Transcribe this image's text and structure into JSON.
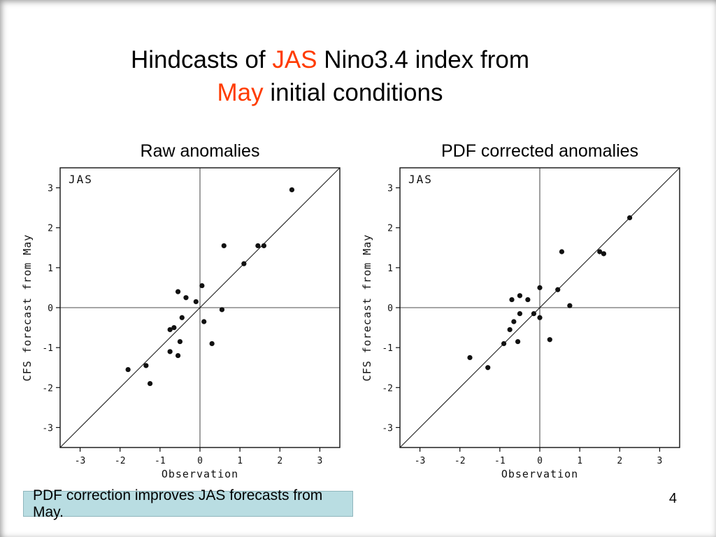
{
  "colors": {
    "accent": "#ff3b00",
    "note_background": "#b9dde2",
    "note_border": "#8fb6bd",
    "ink": "#111111"
  },
  "slide": {
    "page_number": "4",
    "note": "PDF correction improves JAS forecasts from May.",
    "title": {
      "line1": [
        {
          "text": "Hindcasts of ",
          "accent": false
        },
        {
          "text": "JAS",
          "accent": true
        },
        {
          "text": " Nino3.4 index from",
          "accent": false
        }
      ],
      "line2": [
        {
          "text": "May",
          "accent": true
        },
        {
          "text": " initial conditions",
          "accent": false
        }
      ]
    }
  },
  "chart_data": [
    {
      "type": "scatter",
      "title": "Raw anomalies",
      "inner_label": "JAS",
      "xlabel": "Observation",
      "ylabel": "CFS forecast from May",
      "xlim": [
        -3.5,
        3.5
      ],
      "ylim": [
        -3.5,
        3.5
      ],
      "xticks": [
        -3,
        -2,
        -1,
        0,
        1,
        2,
        3
      ],
      "yticks": [
        -3,
        -2,
        -1,
        0,
        1,
        2,
        3
      ],
      "grid": false,
      "reference_lines": [
        "diagonal y=x",
        "vertical x=0",
        "horizontal y=0"
      ],
      "points": [
        [
          -1.8,
          -1.55
        ],
        [
          -1.35,
          -1.45
        ],
        [
          -1.25,
          -1.9
        ],
        [
          -0.75,
          -1.1
        ],
        [
          -0.55,
          -1.2
        ],
        [
          -0.5,
          -0.85
        ],
        [
          -0.75,
          -0.55
        ],
        [
          -0.65,
          -0.5
        ],
        [
          -0.45,
          -0.25
        ],
        [
          -0.55,
          0.4
        ],
        [
          -0.35,
          0.25
        ],
        [
          -0.1,
          0.15
        ],
        [
          0.05,
          0.55
        ],
        [
          0.1,
          -0.35
        ],
        [
          0.3,
          -0.9
        ],
        [
          0.55,
          -0.05
        ],
        [
          0.6,
          1.55
        ],
        [
          1.1,
          1.1
        ],
        [
          1.45,
          1.55
        ],
        [
          1.6,
          1.55
        ],
        [
          2.3,
          2.95
        ]
      ]
    },
    {
      "type": "scatter",
      "title": "PDF corrected anomalies",
      "inner_label": "JAS",
      "xlabel": "Observation",
      "ylabel": "CFS forecast from May",
      "xlim": [
        -3.5,
        3.5
      ],
      "ylim": [
        -3.5,
        3.5
      ],
      "xticks": [
        -3,
        -2,
        -1,
        0,
        1,
        2,
        3
      ],
      "yticks": [
        -3,
        -2,
        -1,
        0,
        1,
        2,
        3
      ],
      "grid": false,
      "reference_lines": [
        "diagonal y=x",
        "vertical x=0",
        "horizontal y=0"
      ],
      "points": [
        [
          -1.75,
          -1.25
        ],
        [
          -1.3,
          -1.5
        ],
        [
          -0.9,
          -0.9
        ],
        [
          -0.75,
          -0.55
        ],
        [
          -0.65,
          -0.35
        ],
        [
          -0.55,
          -0.85
        ],
        [
          -0.7,
          0.2
        ],
        [
          -0.5,
          -0.15
        ],
        [
          -0.5,
          0.3
        ],
        [
          -0.3,
          0.2
        ],
        [
          -0.15,
          -0.15
        ],
        [
          0.0,
          -0.25
        ],
        [
          0.0,
          0.5
        ],
        [
          0.25,
          -0.8
        ],
        [
          0.45,
          0.45
        ],
        [
          0.55,
          1.4
        ],
        [
          0.75,
          0.05
        ],
        [
          1.5,
          1.4
        ],
        [
          1.6,
          1.35
        ],
        [
          2.25,
          2.25
        ]
      ]
    }
  ]
}
